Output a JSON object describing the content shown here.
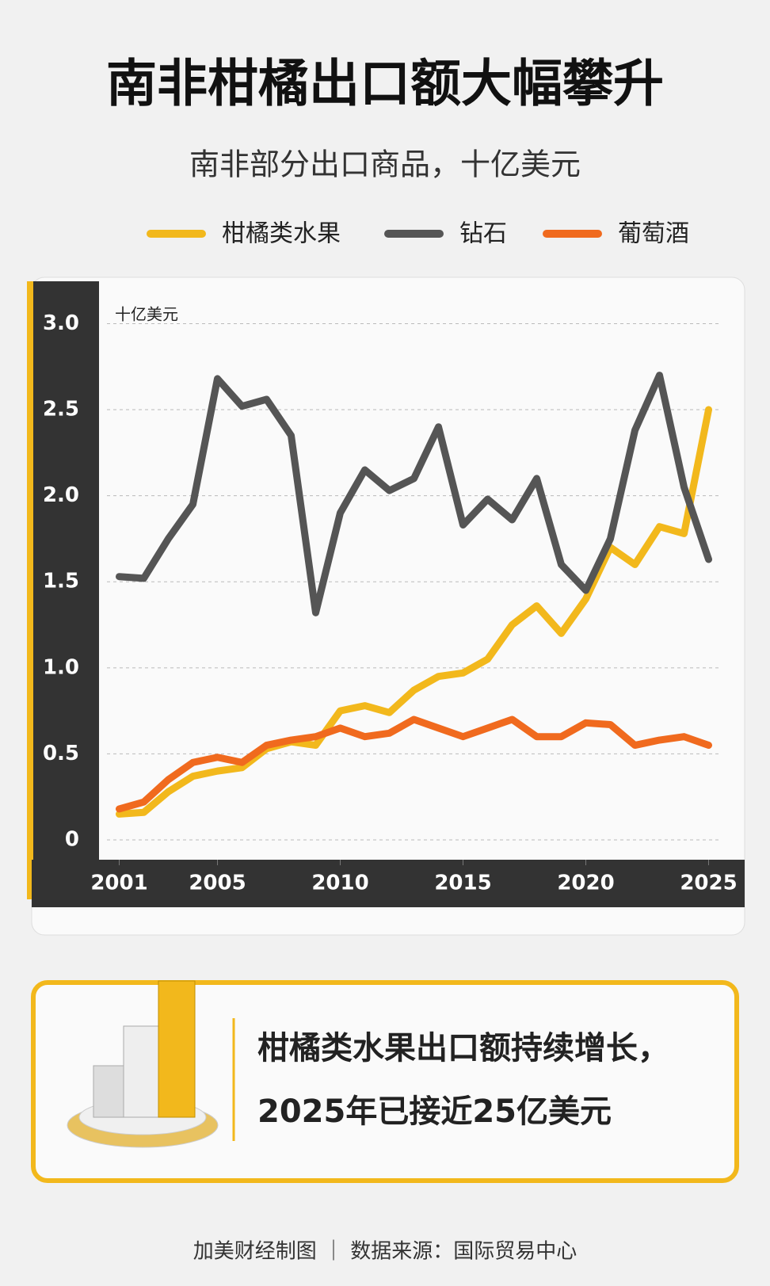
{
  "chart_data": {
    "type": "line",
    "title": "南非柑橘出口额大幅攀升",
    "subtitle": "南非部分出口商品，十亿美元",
    "y_label": "十亿美元",
    "x": [
      2001,
      2002,
      2003,
      2004,
      2005,
      2006,
      2007,
      2008,
      2009,
      2010,
      2011,
      2012,
      2013,
      2014,
      2015,
      2016,
      2017,
      2018,
      2019,
      2020,
      2021,
      2022,
      2023,
      2024,
      2025
    ],
    "series": [
      {
        "name": "柑橘类水果",
        "color": "#f2b81c",
        "values": [
          0.15,
          0.16,
          0.28,
          0.37,
          0.4,
          0.42,
          0.53,
          0.57,
          0.55,
          0.75,
          0.78,
          0.74,
          0.87,
          0.95,
          0.97,
          1.05,
          1.25,
          1.36,
          1.2,
          1.4,
          1.7,
          1.6,
          1.82,
          1.78,
          2.5
        ]
      },
      {
        "name": "钻石",
        "color": "#555555",
        "values": [
          1.53,
          1.52,
          1.75,
          1.95,
          2.68,
          2.52,
          2.56,
          2.35,
          1.32,
          1.9,
          2.15,
          2.03,
          2.1,
          2.4,
          1.83,
          1.98,
          1.86,
          2.1,
          1.6,
          1.45,
          1.75,
          2.38,
          2.7,
          2.05,
          1.63
        ]
      },
      {
        "name": "葡萄酒",
        "color": "#f06a1e",
        "values": [
          0.18,
          0.22,
          0.35,
          0.45,
          0.48,
          0.45,
          0.55,
          0.58,
          0.6,
          0.65,
          0.6,
          0.62,
          0.7,
          0.65,
          0.6,
          0.65,
          0.7,
          0.6,
          0.6,
          0.68,
          0.67,
          0.55,
          0.58,
          0.6,
          0.55
        ]
      }
    ],
    "xlim": [
      2000.5,
      2025.5
    ],
    "xticks": [
      2001,
      2005,
      2010,
      2015,
      2020,
      2025
    ],
    "ylim": [
      0,
      3.2
    ],
    "yticks": [
      0,
      0.5,
      {
        "value": 1,
        "label": "1.0"
      },
      1.5,
      {
        "value": 2,
        "label": "2.0"
      },
      2.5,
      {
        "value": 3,
        "label": "3.0"
      }
    ],
    "grid": true,
    "callout": [
      "柑橘类水果出口额持续增长，",
      "2025年已接近25亿美元"
    ],
    "footer": "加美财经制图 ｜ 数据来源：国际贸易中心"
  }
}
